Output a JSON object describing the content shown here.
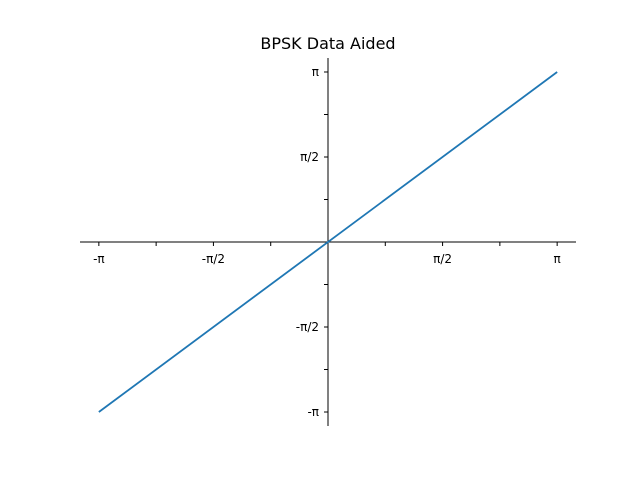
{
  "chart_data": {
    "type": "line",
    "title": "BPSK Data Aided",
    "xlabel": "",
    "ylabel": "",
    "xlim": [
      -3.4,
      3.4
    ],
    "ylim": [
      -3.4,
      3.4
    ],
    "spines": "centered",
    "grid": false,
    "legend": "none",
    "x_ticks": {
      "major": [
        -3.14159,
        -1.5708,
        1.5708,
        3.14159
      ],
      "major_labels": [
        "-π",
        "-π/2",
        "π/2",
        "π"
      ],
      "minor": [
        -2.35619,
        -0.785398,
        0.785398,
        2.35619
      ]
    },
    "y_ticks": {
      "major": [
        -3.14159,
        -1.5708,
        1.5708,
        3.14159
      ],
      "major_labels": [
        "-π",
        "-π/2",
        "π/2",
        "π"
      ],
      "minor": [
        -2.35619,
        -0.785398,
        0.785398,
        2.35619
      ]
    },
    "series": [
      {
        "color": "#1f77b4",
        "x": [
          -3.14159,
          3.14159
        ],
        "y": [
          -3.14159,
          3.14159
        ]
      }
    ]
  }
}
